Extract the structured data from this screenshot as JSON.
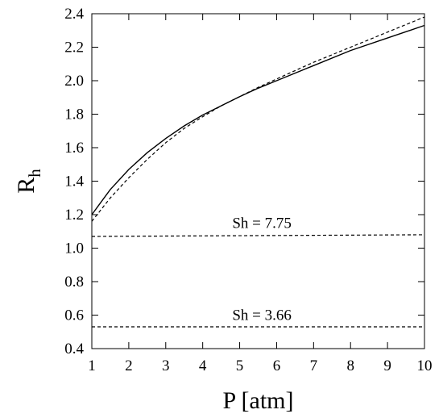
{
  "chart_data": {
    "type": "line",
    "xlabel": "P [atm]",
    "ylabel": {
      "main": "R",
      "sub": "h"
    },
    "xlim": [
      1,
      10
    ],
    "ylim": [
      0.4,
      2.4
    ],
    "xticks": [
      "1",
      "2",
      "3",
      "4",
      "5",
      "6",
      "7",
      "8",
      "9",
      "10"
    ],
    "yticks": [
      "0.4",
      "0.6",
      "0.8",
      "1.0",
      "1.2",
      "1.4",
      "1.6",
      "1.8",
      "2.0",
      "2.2",
      "2.4"
    ],
    "grid": false,
    "legend": "none",
    "series": [
      {
        "style": "solid",
        "x": [
          1,
          1.5,
          2,
          2.5,
          3,
          3.5,
          4,
          4.5,
          5,
          5.5,
          6,
          7,
          8,
          9,
          10
        ],
        "y": [
          1.2,
          1.35,
          1.47,
          1.57,
          1.655,
          1.73,
          1.795,
          1.85,
          1.905,
          1.955,
          2.0,
          2.09,
          2.18,
          2.255,
          2.33
        ]
      },
      {
        "style": "dashed",
        "x": [
          1,
          1.5,
          2,
          2.5,
          3,
          3.5,
          4,
          4.5,
          5,
          5.5,
          6,
          7,
          8,
          9,
          10
        ],
        "y": [
          1.16,
          1.3,
          1.42,
          1.53,
          1.63,
          1.715,
          1.785,
          1.85,
          1.905,
          1.96,
          2.01,
          2.11,
          2.2,
          2.29,
          2.38
        ]
      },
      {
        "style": "dashed",
        "x": [
          1,
          10
        ],
        "y": [
          1.07,
          1.08
        ]
      },
      {
        "style": "dashed",
        "x": [
          1,
          10
        ],
        "y": [
          0.53,
          0.53
        ]
      }
    ],
    "annotations": [
      {
        "text": "Sh = 7.75",
        "x": 5.6,
        "y": 1.12
      },
      {
        "text": "Sh = 3.66",
        "x": 5.6,
        "y": 0.57
      }
    ]
  }
}
